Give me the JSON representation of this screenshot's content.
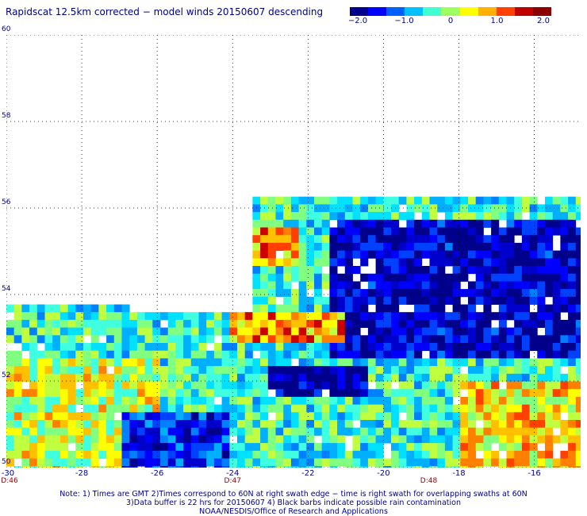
{
  "title": "Rapidscat 12.5km corrected − model winds 20150607 descending",
  "colorbar": {
    "labels": [
      "−2.0",
      "−1.0",
      "0",
      "1.0",
      "2.0"
    ],
    "values": [
      -2.0,
      -1.0,
      0,
      1.0,
      2.0
    ],
    "colors": [
      "#00008b",
      "#0000ff",
      "#0060ff",
      "#00c0ff",
      "#40ffd0",
      "#a0ff60",
      "#ffff00",
      "#ffb000",
      "#ff4000",
      "#c00000",
      "#8b0000"
    ]
  },
  "map": {
    "lat_labels": [
      "60",
      "58",
      "56",
      "54",
      "52",
      "50"
    ],
    "lat_values": [
      60,
      58,
      56,
      54,
      52,
      50
    ],
    "lon_labels": [
      "-30",
      "-28",
      "-26",
      "-24",
      "-22",
      "-20",
      "-18",
      "-16"
    ],
    "lon_values": [
      -30,
      -28,
      -26,
      -24,
      -22,
      -20,
      -18,
      -16
    ],
    "lat_range": [
      50,
      60
    ],
    "lon_range": [
      -30,
      -15
    ],
    "grid": true,
    "time_labels": [
      {
        "text": "D:46",
        "lon": -30
      },
      {
        "text": "D:47",
        "lon": -24
      },
      {
        "text": "D:48",
        "lon": -18.8
      }
    ]
  },
  "notes": [
    "Note: 1) Times are GMT 2)Times correspond to 60N at right swath edge − time is right swath for overlapping swaths at 60N",
    "3)Data buffer is 22 hrs for 20150607 4) Black barbs indicate possible rain contamination",
    "NOAA/NESDIS/Office of Research and Applications"
  ]
}
